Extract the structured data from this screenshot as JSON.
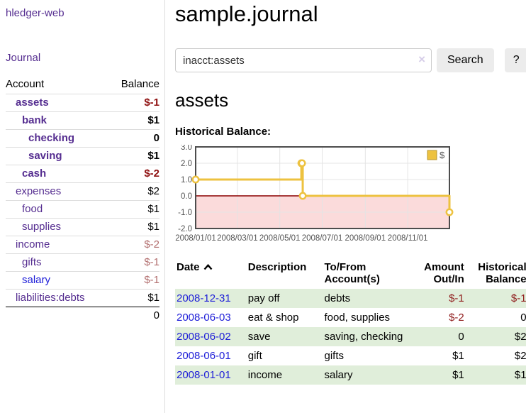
{
  "sidebar": {
    "app_title": "hledger-web",
    "journal_label": "Journal",
    "table": {
      "account_header": "Account",
      "balance_header": "Balance",
      "accounts": [
        {
          "name": "assets",
          "depth": 1,
          "bold": true,
          "balance": "$-1",
          "neg": "strong"
        },
        {
          "name": "bank",
          "depth": 2,
          "bold": true,
          "balance": "$1"
        },
        {
          "name": "checking",
          "depth": 3,
          "bold": true,
          "balance": "0"
        },
        {
          "name": "saving",
          "depth": 3,
          "bold": true,
          "balance": "$1"
        },
        {
          "name": "cash",
          "depth": 2,
          "bold": true,
          "balance": "$-2",
          "neg": "strong"
        },
        {
          "name": "expenses",
          "depth": 1,
          "bold": false,
          "balance": "$2"
        },
        {
          "name": "food",
          "depth": 2,
          "bold": false,
          "balance": "$1"
        },
        {
          "name": "supplies",
          "depth": 2,
          "bold": false,
          "balance": "$1"
        },
        {
          "name": "income",
          "depth": 1,
          "bold": false,
          "balance": "$-2",
          "neg": "soft"
        },
        {
          "name": "gifts",
          "depth": 2,
          "bold": false,
          "balance": "$-1",
          "neg": "soft"
        },
        {
          "name": "salary",
          "depth": 2,
          "bold": false,
          "balance": "$-1",
          "neg": "soft",
          "blue": true
        },
        {
          "name": "liabilities:debts",
          "depth": 1,
          "bold": false,
          "balance": "$1"
        }
      ],
      "total": "0"
    }
  },
  "main": {
    "title": "sample.journal",
    "search": {
      "value": "inacct:assets",
      "clear_icon": "×",
      "search_label": "Search",
      "help_label": "?"
    },
    "account_heading": "assets",
    "chart_title": "Historical Balance:"
  },
  "chart_data": {
    "type": "line",
    "step": true,
    "title": "Historical Balance",
    "series": [
      {
        "name": "$",
        "color": "#edc240",
        "points": [
          [
            "2008-01-01",
            1
          ],
          [
            "2008-06-01",
            2
          ],
          [
            "2008-06-02",
            2
          ],
          [
            "2008-06-03",
            0
          ],
          [
            "2008-12-31",
            -1
          ]
        ]
      }
    ],
    "x_range": [
      "2008-01-01",
      "2008-12-31"
    ],
    "ylim": [
      -2,
      3
    ],
    "x_ticks": [
      "2008/01/01",
      "2008/03/01",
      "2008/05/01",
      "2008/07/01",
      "2008/09/01",
      "2008/11/01"
    ],
    "y_ticks": [
      "3.0",
      "2.0",
      "1.0",
      "0.0",
      "-1.0",
      "-2.0"
    ],
    "legend_position": "top-right",
    "grid": true,
    "grid_color": "#e4e4e4",
    "border_color": "#4d4d4d",
    "tick_color": "#545454",
    "zero_line_color": "#8b0000",
    "negative_region_color": "#fbdbdb"
  },
  "register": {
    "headers": {
      "date": "Date",
      "description": "Description",
      "tofrom": "To/From Account(s)",
      "amount": "Amount Out/In",
      "balance": "Historical Balance"
    },
    "rows": [
      {
        "date": "2008-12-31",
        "description": "pay off",
        "accounts": "debts",
        "amount": "$-1",
        "balance": "$-1"
      },
      {
        "date": "2008-06-03",
        "description": "eat & shop",
        "accounts": "food, supplies",
        "amount": "$-2",
        "balance": "0"
      },
      {
        "date": "2008-06-02",
        "description": "save",
        "accounts": "saving, checking",
        "amount": "0",
        "balance": "$2"
      },
      {
        "date": "2008-06-01",
        "description": "gift",
        "accounts": "gifts",
        "amount": "$1",
        "balance": "$2"
      },
      {
        "date": "2008-01-01",
        "description": "income",
        "accounts": "salary",
        "amount": "$1",
        "balance": "$1"
      }
    ]
  }
}
